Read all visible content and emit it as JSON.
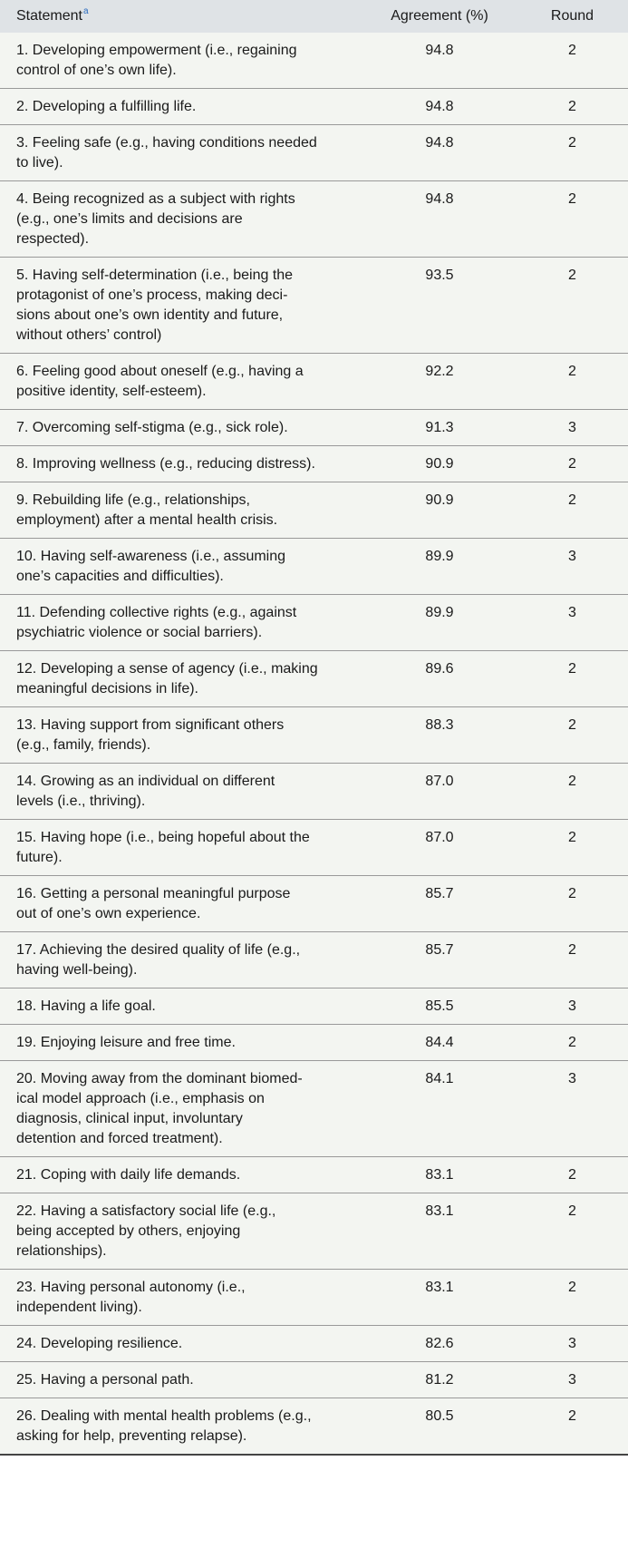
{
  "table": {
    "headers": {
      "statement": "Statement",
      "statement_note": "a",
      "agreement": "Agreement (%)",
      "round": "Round"
    },
    "rows": [
      {
        "lines": [
          "1. Developing empowerment (i.e., regaining",
          "control of one’s own life)."
        ],
        "agreement": "94.8",
        "round": "2"
      },
      {
        "lines": [
          "2. Developing a fulfilling life."
        ],
        "agreement": "94.8",
        "round": "2"
      },
      {
        "lines": [
          "3. Feeling safe (e.g., having conditions needed",
          "to live)."
        ],
        "agreement": "94.8",
        "round": "2"
      },
      {
        "lines": [
          "4. Being recognized as a subject with rights",
          "(e.g., one’s limits and decisions are",
          "respected)."
        ],
        "agreement": "94.8",
        "round": "2"
      },
      {
        "lines": [
          "5. Having self-determination (i.e., being the",
          "protagonist of one’s process, making deci-",
          "sions about one’s own identity and future,",
          "without others’ control)"
        ],
        "agreement": "93.5",
        "round": "2"
      },
      {
        "lines": [
          "6. Feeling good about oneself (e.g., having a",
          "positive identity, self-esteem)."
        ],
        "agreement": "92.2",
        "round": "2"
      },
      {
        "lines": [
          "7. Overcoming self-stigma (e.g., sick role)."
        ],
        "agreement": "91.3",
        "round": "3"
      },
      {
        "lines": [
          "8. Improving wellness (e.g., reducing distress)."
        ],
        "agreement": "90.9",
        "round": "2"
      },
      {
        "lines": [
          "9. Rebuilding life (e.g., relationships,",
          "employment) after a mental health crisis."
        ],
        "agreement": "90.9",
        "round": "2"
      },
      {
        "lines": [
          "10. Having self-awareness (i.e., assuming",
          "one’s capacities and difficulties)."
        ],
        "agreement": "89.9",
        "round": "3"
      },
      {
        "lines": [
          "11. Defending collective rights (e.g., against",
          "psychiatric violence or social barriers)."
        ],
        "agreement": "89.9",
        "round": "3"
      },
      {
        "lines": [
          "12. Developing a sense of agency (i.e., making",
          "meaningful decisions in life)."
        ],
        "agreement": "89.6",
        "round": "2"
      },
      {
        "lines": [
          "13. Having support from significant others",
          "(e.g., family, friends)."
        ],
        "agreement": "88.3",
        "round": "2"
      },
      {
        "lines": [
          "14. Growing as an individual on different",
          "levels (i.e., thriving)."
        ],
        "agreement": "87.0",
        "round": "2"
      },
      {
        "lines": [
          "15. Having hope (i.e., being hopeful about the",
          "future)."
        ],
        "agreement": "87.0",
        "round": "2"
      },
      {
        "lines": [
          "16. Getting a personal meaningful purpose",
          "out of one’s own experience."
        ],
        "agreement": "85.7",
        "round": "2"
      },
      {
        "lines": [
          "17. Achieving the desired quality of life (e.g.,",
          "having well-being)."
        ],
        "agreement": "85.7",
        "round": "2"
      },
      {
        "lines": [
          "18. Having a life goal."
        ],
        "agreement": "85.5",
        "round": "3"
      },
      {
        "lines": [
          "19. Enjoying leisure and free time."
        ],
        "agreement": "84.4",
        "round": "2"
      },
      {
        "lines": [
          "20. Moving away from the dominant biomed-",
          "ical model approach (i.e., emphasis on",
          "diagnosis, clinical input, involuntary",
          "detention and forced treatment)."
        ],
        "agreement": "84.1",
        "round": "3"
      },
      {
        "lines": [
          "21. Coping with daily life demands."
        ],
        "agreement": "83.1",
        "round": "2"
      },
      {
        "lines": [
          "22. Having a satisfactory social life (e.g.,",
          "being accepted by others, enjoying",
          "relationships)."
        ],
        "agreement": "83.1",
        "round": "2"
      },
      {
        "lines": [
          "23. Having personal autonomy (i.e.,",
          "independent living)."
        ],
        "agreement": "83.1",
        "round": "2"
      },
      {
        "lines": [
          "24. Developing resilience."
        ],
        "agreement": "82.6",
        "round": "3"
      },
      {
        "lines": [
          "25. Having a personal path."
        ],
        "agreement": "81.2",
        "round": "3"
      },
      {
        "lines": [
          "26. Dealing with mental health problems (e.g.,",
          "asking for help, preventing relapse)."
        ],
        "agreement": "80.5",
        "round": "2"
      }
    ]
  }
}
